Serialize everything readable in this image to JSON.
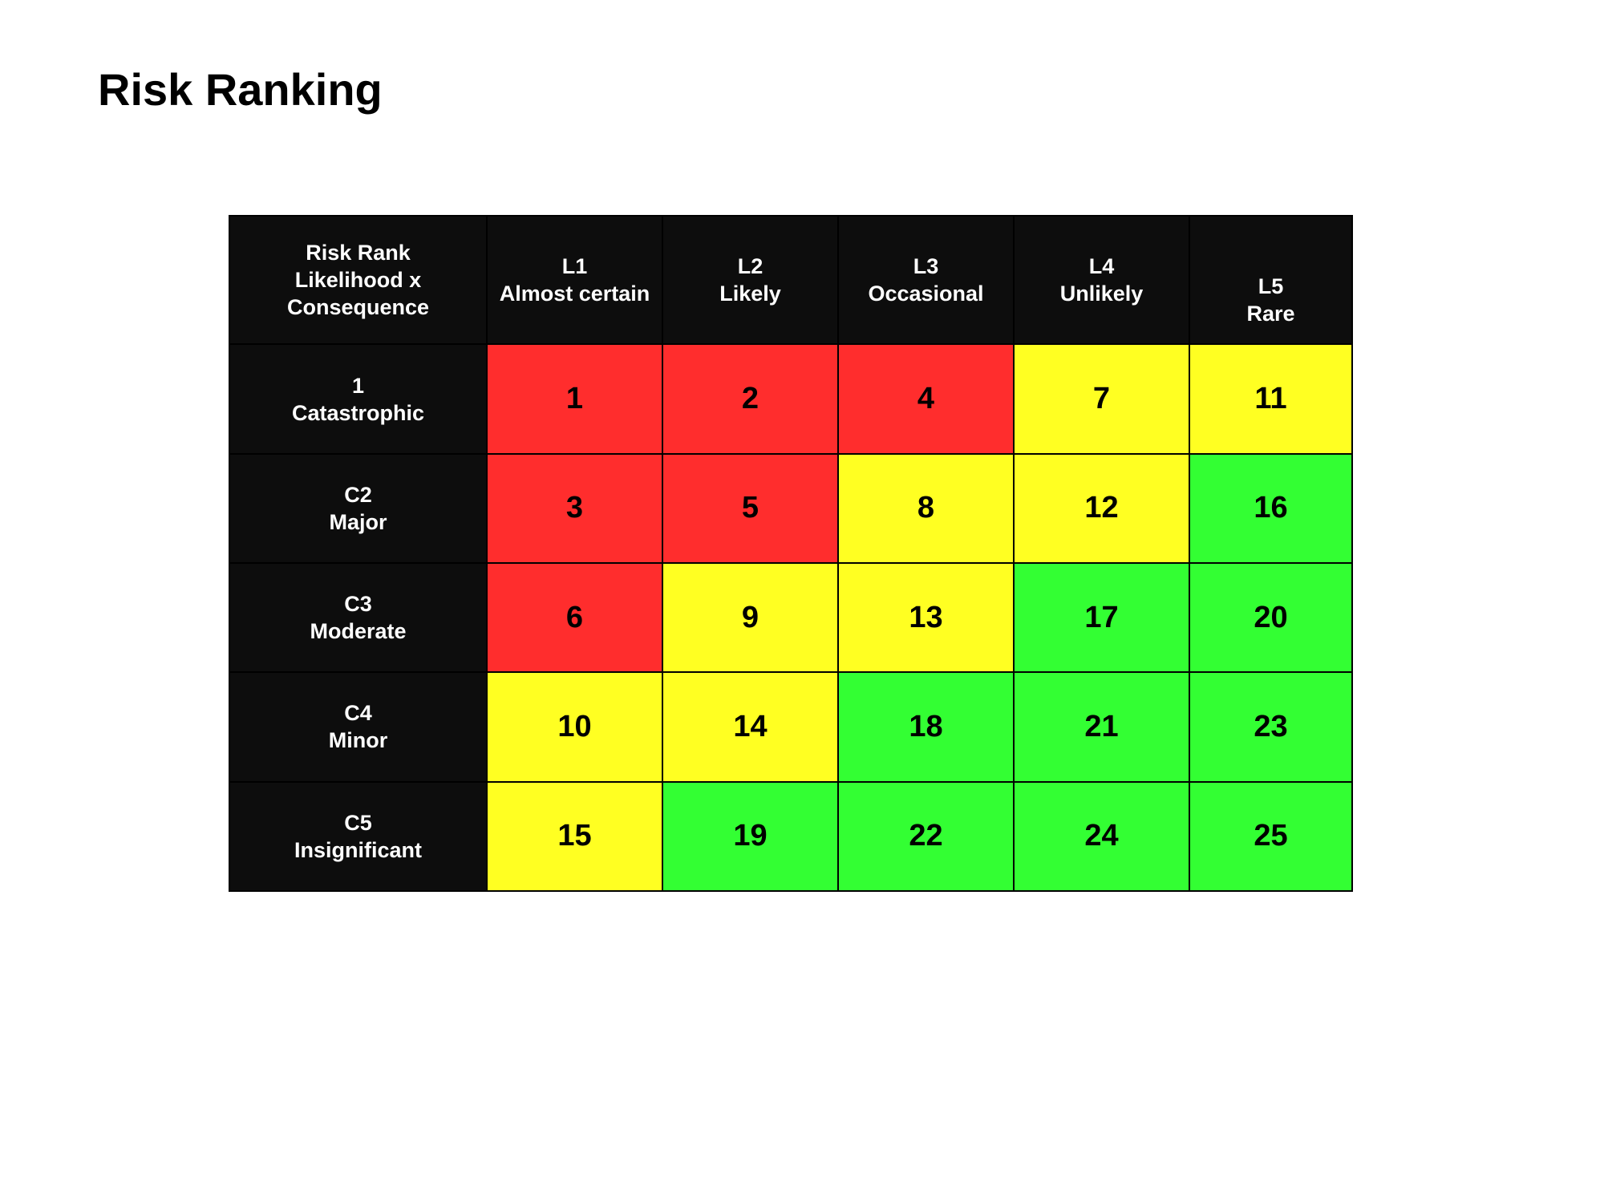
{
  "page": {
    "title": "Risk Ranking"
  },
  "matrix": {
    "corner": [
      "Risk Rank",
      "Likelihood x",
      "Consequence"
    ],
    "likelihood": [
      {
        "code": "L1",
        "label": "Almost certain"
      },
      {
        "code": "L2",
        "label": "Likely"
      },
      {
        "code": "L3",
        "label": "Occasional"
      },
      {
        "code": "L4",
        "label": "Unlikely"
      },
      {
        "code": "L5",
        "label": "Rare"
      }
    ],
    "consequence": [
      {
        "code": "1",
        "label": "Catastrophic"
      },
      {
        "code": "C2",
        "label": "Major"
      },
      {
        "code": "C3",
        "label": "Moderate"
      },
      {
        "code": "C4",
        "label": "Minor"
      },
      {
        "code": "C5",
        "label": "Insignificant"
      }
    ],
    "ranks": [
      [
        1,
        2,
        4,
        7,
        11
      ],
      [
        3,
        5,
        8,
        12,
        16
      ],
      [
        6,
        9,
        13,
        17,
        20
      ],
      [
        10,
        14,
        18,
        21,
        23
      ],
      [
        15,
        19,
        22,
        24,
        25
      ]
    ],
    "levels": [
      [
        "high",
        "high",
        "high",
        "medium",
        "medium"
      ],
      [
        "high",
        "high",
        "medium",
        "medium",
        "low"
      ],
      [
        "high",
        "medium",
        "medium",
        "low",
        "low"
      ],
      [
        "medium",
        "medium",
        "low",
        "low",
        "low"
      ],
      [
        "medium",
        "low",
        "low",
        "low",
        "low"
      ]
    ],
    "colors": {
      "high": "#ff2d2d",
      "medium": "#ffff22",
      "low": "#33ff33",
      "header_bg": "#0d0d0d",
      "header_text": "#ffffff"
    }
  }
}
